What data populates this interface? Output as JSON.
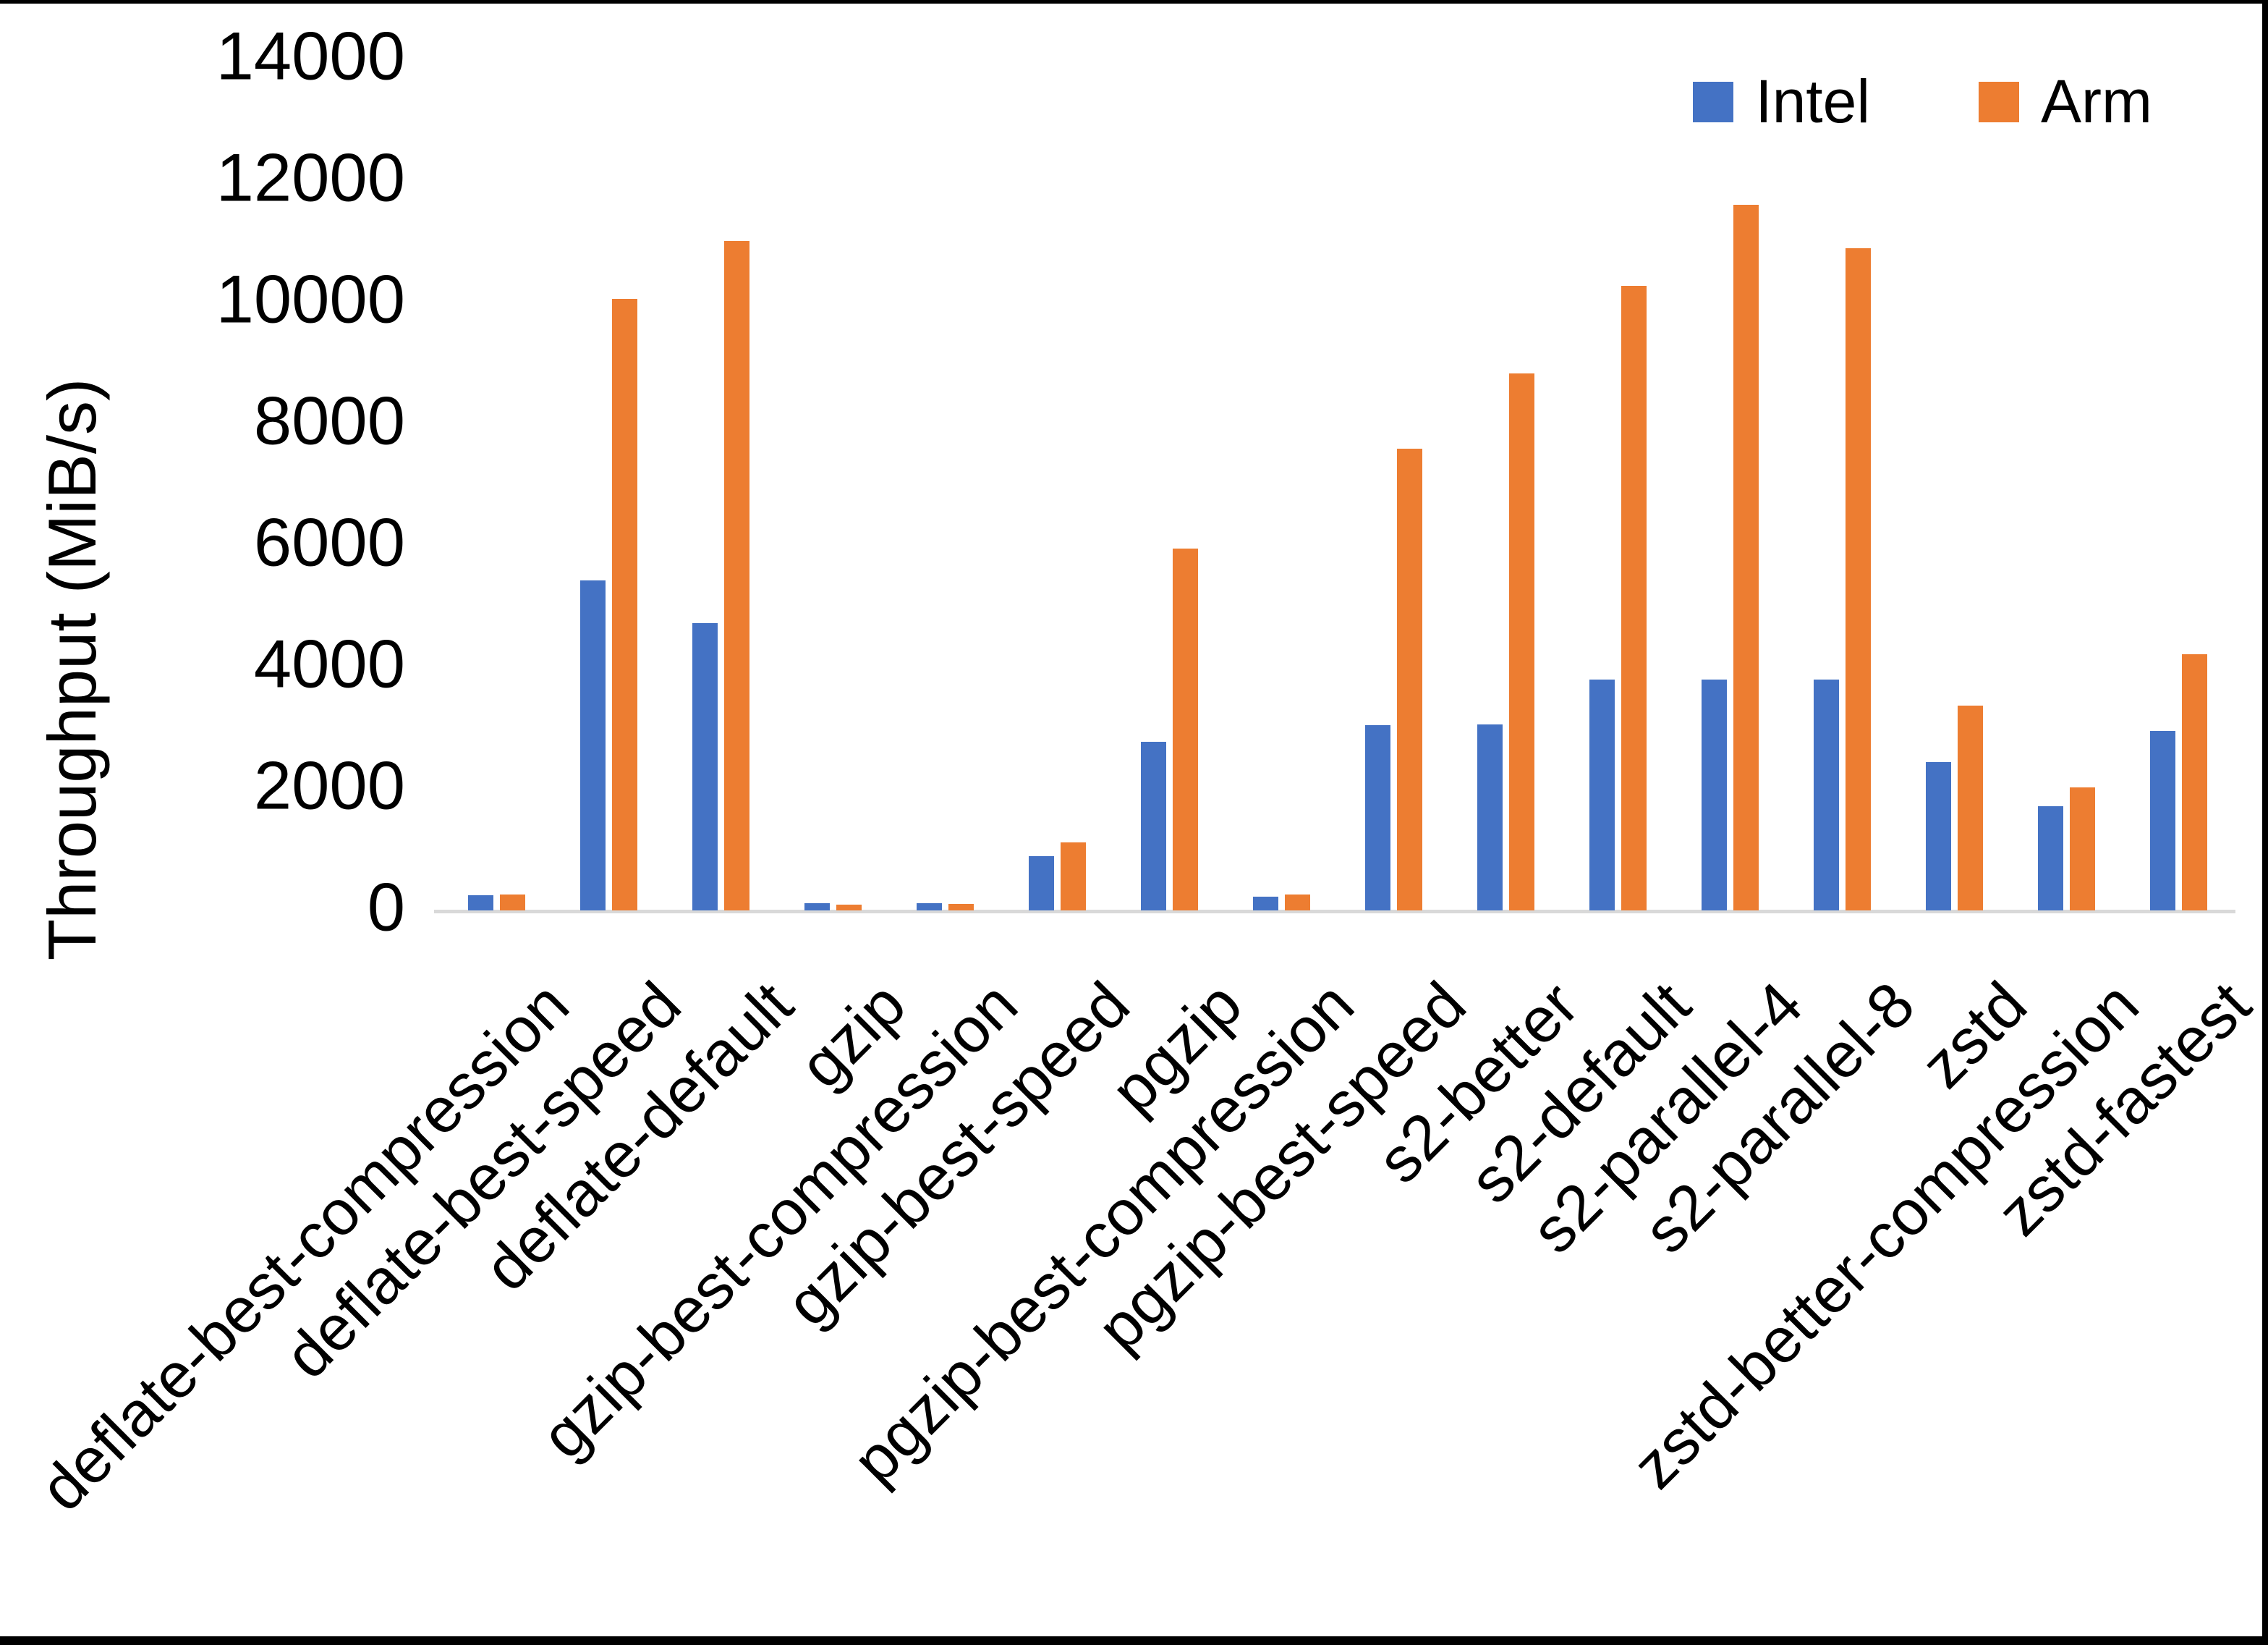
{
  "chart_data": {
    "type": "bar",
    "title": "",
    "xlabel": "",
    "ylabel": "Throughput (MiB/s)",
    "ylim": [
      0,
      14000
    ],
    "ytick_step": 2000,
    "yticks": [
      0,
      2000,
      4000,
      6000,
      8000,
      10000,
      12000,
      14000
    ],
    "grid": false,
    "legend_position": "top-right",
    "categories": [
      "deflate-best-compression",
      "deflate-best-speed",
      "deflate-default",
      "gzip",
      "gzip-best-compression",
      "gzip-best-speed",
      "pgzip",
      "pgzip-best-compression",
      "pgzip-best-speed",
      "s2-better",
      "s2-default",
      "s2-parallel-4",
      "s2-parallel-8",
      "zstd",
      "zstd-better-compression",
      "zstd-fastest"
    ],
    "series": [
      {
        "name": "Intel",
        "color": "#4472C4",
        "values": [
          250,
          5430,
          4730,
          120,
          120,
          890,
          2770,
          230,
          3050,
          3060,
          3800,
          3800,
          3800,
          2440,
          1710,
          2950
        ]
      },
      {
        "name": "Arm",
        "color": "#ED7D31",
        "values": [
          260,
          10060,
          11010,
          90,
          110,
          1120,
          5950,
          260,
          7590,
          8830,
          10270,
          11610,
          10890,
          3370,
          2020,
          4210
        ]
      }
    ]
  },
  "colors": {
    "background": "#FFFFFF",
    "axis_line": "#D9D9D9",
    "text": "#000000",
    "frame_border": "#000000"
  }
}
